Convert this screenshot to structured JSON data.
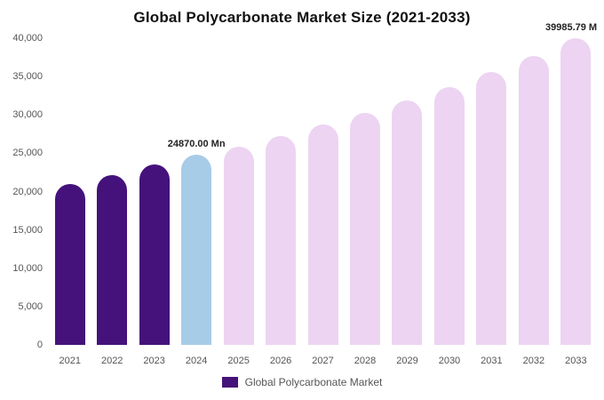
{
  "chart_data": {
    "type": "bar",
    "title": "Global Polycarbonate Market Size (2021-2033)",
    "categories": [
      "2021",
      "2022",
      "2023",
      "2024",
      "2025",
      "2026",
      "2027",
      "2028",
      "2029",
      "2030",
      "2031",
      "2032",
      "2033"
    ],
    "values": [
      21000,
      22100,
      23500,
      24870,
      25900,
      27250,
      28750,
      30300,
      31900,
      33650,
      35600,
      37700,
      39985.79
    ],
    "units": "Mn",
    "ylim": [
      0,
      40000
    ],
    "ytick_interval": 5000,
    "ytick_labels": [
      "0",
      "5,000",
      "10,000",
      "15,000",
      "20,000",
      "25,000",
      "30,000",
      "35,000",
      "40,000"
    ],
    "grid": false,
    "bar_segments": [
      "historical",
      "historical",
      "historical",
      "current",
      "forecast",
      "forecast",
      "forecast",
      "forecast",
      "forecast",
      "forecast",
      "forecast",
      "forecast",
      "forecast"
    ],
    "colors": {
      "historical": "#45127b",
      "current": "#a7cce7",
      "forecast": "#edd4f2"
    },
    "annotations": [
      {
        "index": 3,
        "text": "24870.00 Mn",
        "align": "center"
      },
      {
        "index": 12,
        "text": "39985.79 M",
        "align": "right"
      }
    ],
    "legend": {
      "position": "bottom",
      "label": "Global Polycarbonate Market",
      "swatch_color": "#45127b"
    }
  }
}
